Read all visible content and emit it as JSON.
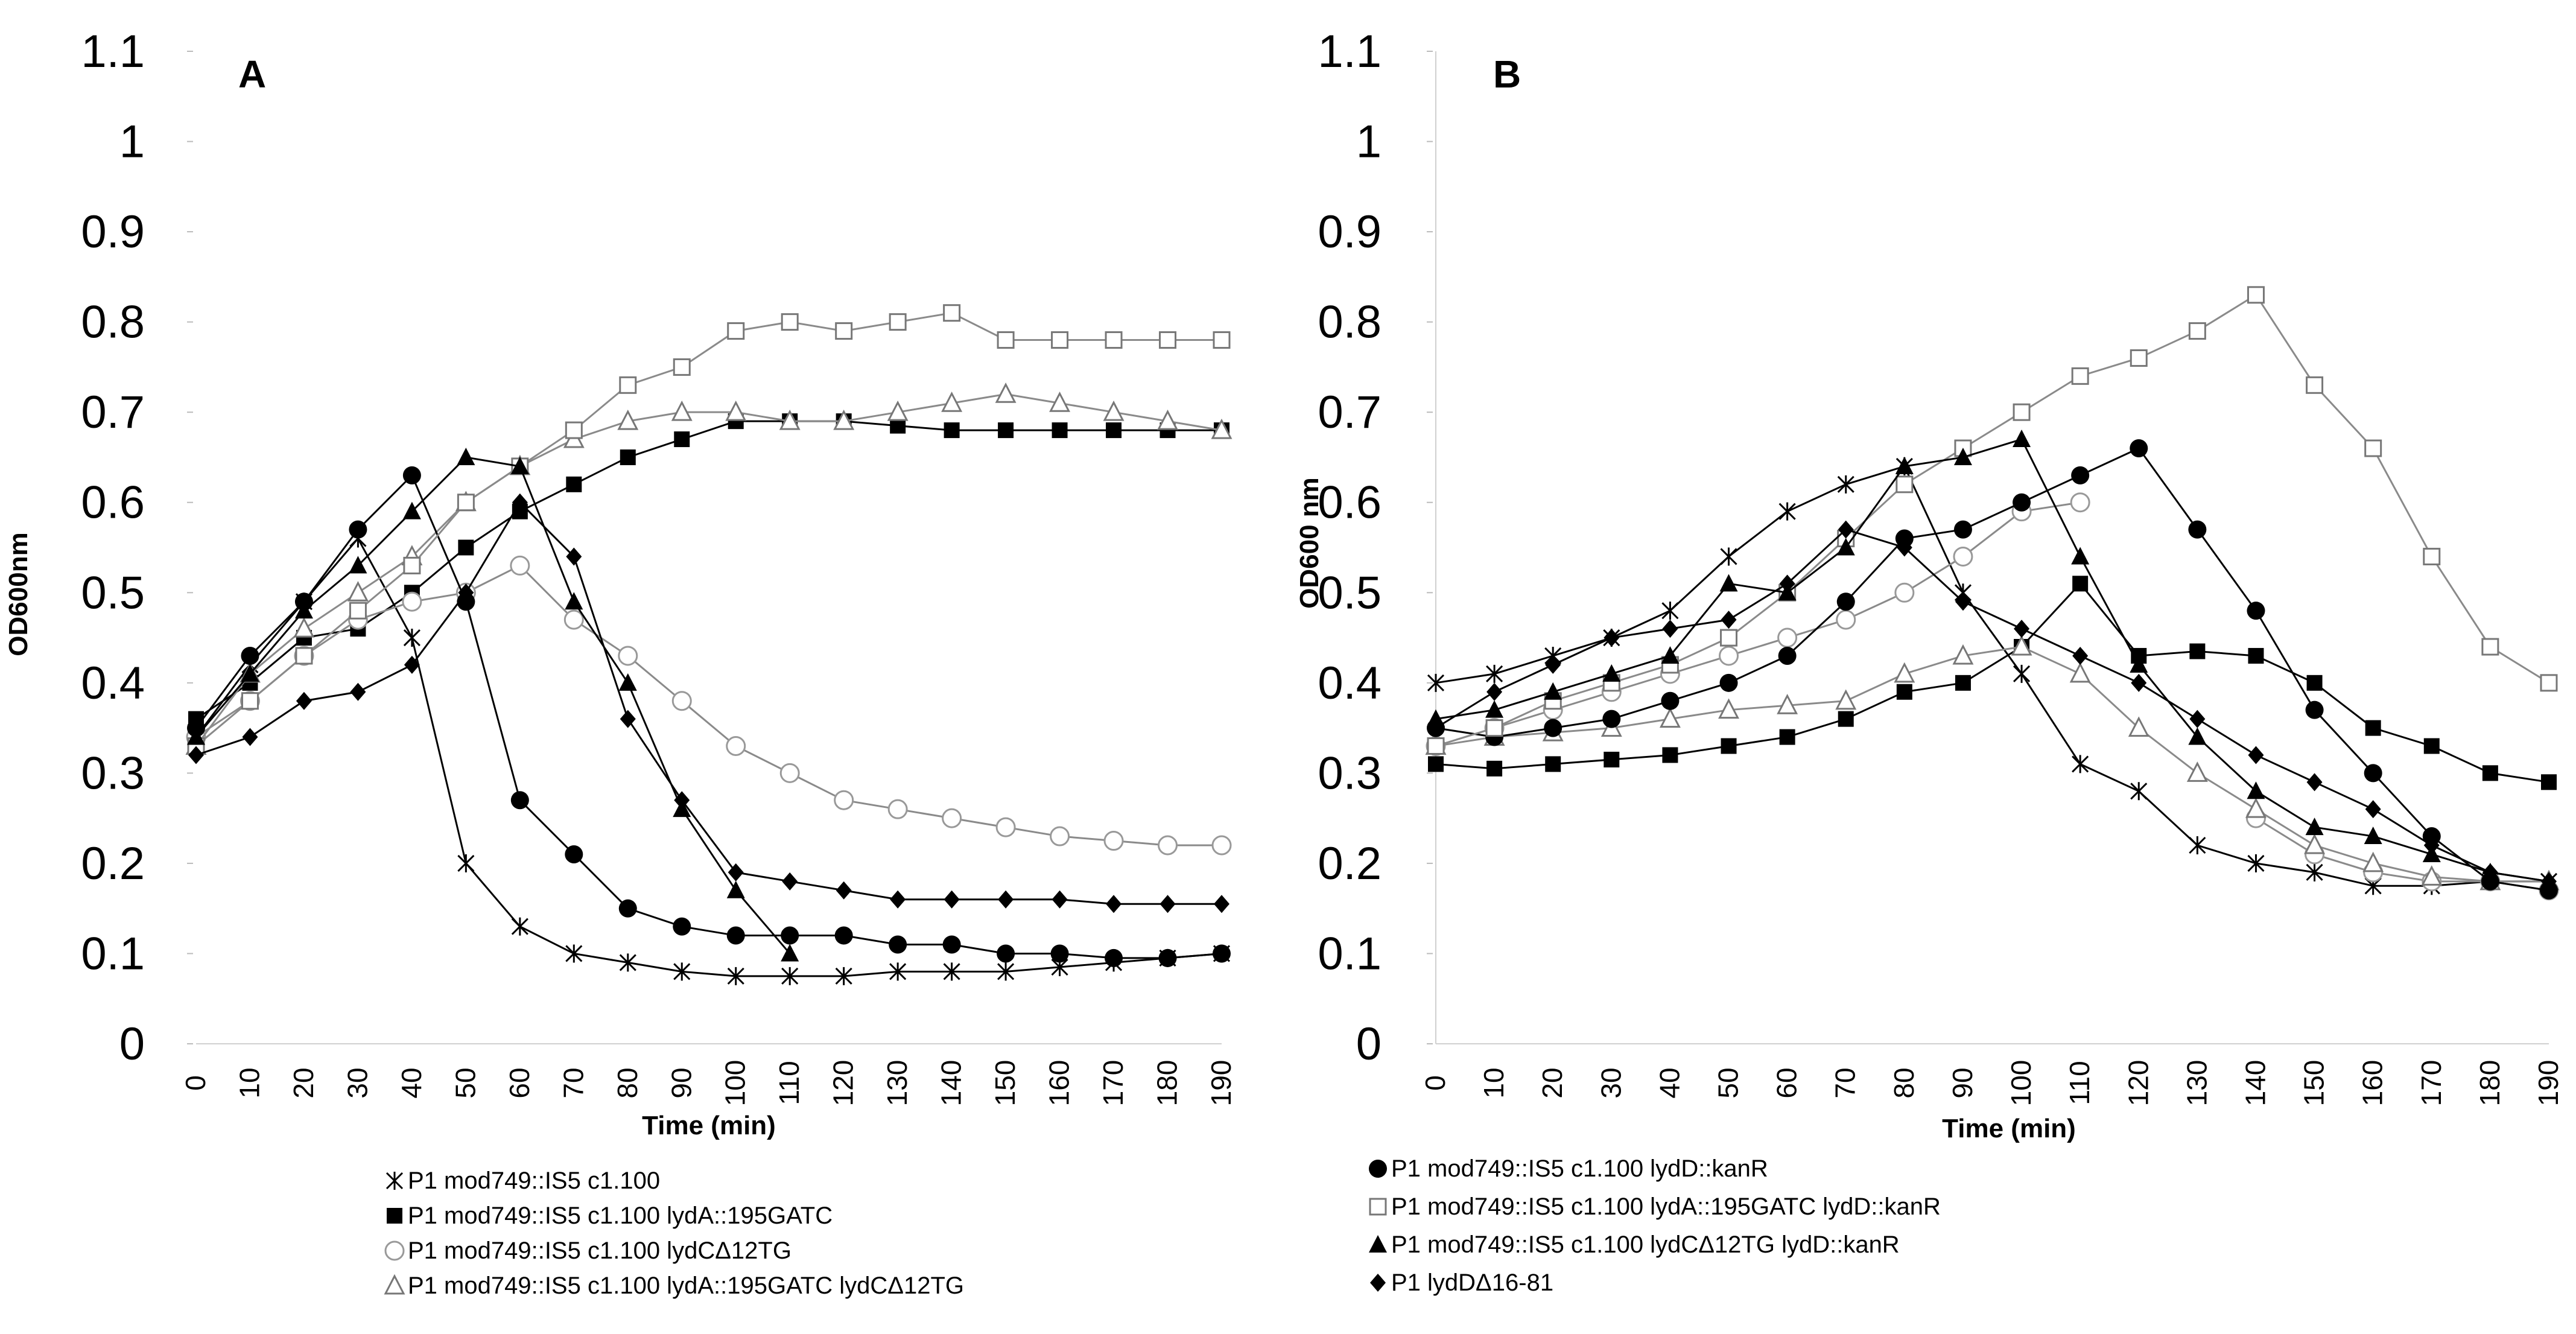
{
  "figure": {
    "panels": [
      "A",
      "B"
    ]
  },
  "chart_data": [
    {
      "panel_label": "A",
      "type": "line",
      "title": "",
      "xlabel": "Time (min)",
      "ylabel": "OD600nm",
      "xlim": [
        0,
        190
      ],
      "ylim": [
        0,
        1.1
      ],
      "yticks": [
        "0",
        "0.1",
        "0.2",
        "0.3",
        "0.4",
        "0.5",
        "0.6",
        "0.7",
        "0.8",
        "0.9",
        "1",
        "1.1"
      ],
      "x": [
        0,
        10,
        20,
        30,
        40,
        50,
        60,
        70,
        80,
        90,
        100,
        110,
        120,
        130,
        140,
        150,
        160,
        170,
        180,
        190
      ],
      "xtick_labels": [
        "0",
        "10",
        "20",
        "30",
        "40",
        "50",
        "60",
        "70",
        "80",
        "90",
        "100",
        "110",
        "120",
        "130",
        "140",
        "150",
        "160",
        "170",
        "180",
        "190"
      ],
      "legend": "bottom",
      "series": [
        {
          "name": "P1 mod749::IS5 c1.100",
          "marker": "star",
          "values": [
            0.34,
            0.42,
            0.49,
            0.56,
            0.45,
            0.2,
            0.13,
            0.1,
            0.09,
            0.08,
            0.075,
            0.075,
            0.075,
            0.08,
            0.08,
            0.08,
            0.085,
            0.09,
            0.095,
            0.1
          ]
        },
        {
          "name": "P1 mod749::IS5 c1.100 lydA::195GATC",
          "marker": "square-filled",
          "values": [
            0.36,
            0.4,
            0.45,
            0.46,
            0.5,
            0.55,
            0.59,
            0.62,
            0.65,
            0.67,
            0.69,
            0.69,
            0.69,
            0.685,
            0.68,
            0.68,
            0.68,
            0.68,
            0.68,
            0.68
          ]
        },
        {
          "name": "P1 mod749::IS5 c1.100 lydCΔ12TG",
          "marker": "circle-open",
          "values": [
            0.34,
            0.38,
            0.43,
            0.47,
            0.49,
            0.5,
            0.53,
            0.47,
            0.43,
            0.38,
            0.33,
            0.3,
            0.27,
            0.26,
            0.25,
            0.24,
            0.23,
            0.225,
            0.22,
            0.22
          ]
        },
        {
          "name": "P1 mod749::IS5 c1.100 lydA::195GATC lydCΔ12TG",
          "marker": "triangle-open",
          "values": [
            0.33,
            0.41,
            0.46,
            0.5,
            0.54,
            0.6,
            0.64,
            0.67,
            0.69,
            0.7,
            0.7,
            0.69,
            0.69,
            0.7,
            0.71,
            0.72,
            0.71,
            0.7,
            0.69,
            0.68
          ]
        },
        {
          "name": "P1 mod749::IS5 c1.100 lydD::kanR",
          "marker": "circle-filled",
          "values": [
            0.35,
            0.43,
            0.49,
            0.57,
            0.63,
            0.49,
            0.27,
            0.21,
            0.15,
            0.13,
            0.12,
            0.12,
            0.12,
            0.11,
            0.11,
            0.1,
            0.1,
            0.095,
            0.095,
            0.1
          ]
        },
        {
          "name": "P1 mod749::IS5 c1.100 lydA::195GATC lydD::kanR",
          "marker": "square-open",
          "values": [
            0.33,
            0.38,
            0.43,
            0.48,
            0.53,
            0.6,
            0.64,
            0.68,
            0.73,
            0.75,
            0.79,
            0.8,
            0.79,
            0.8,
            0.81,
            0.78,
            0.78,
            0.78,
            0.78,
            0.78
          ]
        },
        {
          "name": "P1 mod749::IS5 c1.100 lydCΔ12TG lydD::kanR",
          "marker": "triangle-filled",
          "values": [
            0.34,
            0.41,
            0.48,
            0.53,
            0.59,
            0.65,
            0.64,
            0.49,
            0.4,
            0.26,
            0.17,
            0.1,
            null,
            null,
            null,
            null,
            null,
            null,
            null,
            null
          ]
        },
        {
          "name": "P1 lydDΔ16-81",
          "marker": "diamond-filled",
          "values": [
            0.32,
            0.34,
            0.38,
            0.39,
            0.42,
            0.5,
            0.6,
            0.54,
            0.36,
            0.27,
            0.19,
            0.18,
            0.17,
            0.16,
            0.16,
            0.16,
            0.16,
            0.155,
            0.155,
            0.155
          ]
        }
      ],
      "legend_entries": [
        {
          "name": "P1 mod749::IS5 c1.100",
          "marker": "star"
        },
        {
          "name": "P1 mod749::IS5 c1.100 lydA::195GATC",
          "marker": "square-filled"
        },
        {
          "name": "P1 mod749::IS5 c1.100 lydCΔ12TG",
          "marker": "circle-open"
        },
        {
          "name": "P1 mod749::IS5 c1.100 lydA::195GATC lydCΔ12TG",
          "marker": "triangle-open"
        }
      ]
    },
    {
      "panel_label": "B",
      "type": "line",
      "title": "",
      "xlabel": "Time (min)",
      "ylabel": "OD600 nm",
      "xlim": [
        0,
        190
      ],
      "ylim": [
        0,
        1.1
      ],
      "yticks": [
        "0",
        "0.1",
        "0.2",
        "0.3",
        "0.4",
        "0.5",
        "0.6",
        "0.7",
        "0.8",
        "0.9",
        "1",
        "1.1"
      ],
      "x": [
        0,
        10,
        20,
        30,
        40,
        50,
        60,
        70,
        80,
        90,
        100,
        110,
        120,
        130,
        140,
        150,
        160,
        170,
        180,
        190
      ],
      "xtick_labels": [
        "0",
        "10",
        "20",
        "30",
        "40",
        "50",
        "60",
        "70",
        "80",
        "90",
        "100",
        "110",
        "120",
        "130",
        "140",
        "150",
        "160",
        "170",
        "180",
        "190"
      ],
      "legend": "bottom",
      "series": [
        {
          "name": "P1 mod749::IS5 c1.100",
          "marker": "star",
          "values": [
            0.4,
            0.41,
            0.43,
            0.45,
            0.48,
            0.54,
            0.59,
            0.62,
            0.64,
            0.5,
            0.41,
            0.31,
            0.28,
            0.22,
            0.2,
            0.19,
            0.175,
            0.175,
            0.18,
            0.18
          ]
        },
        {
          "name": "P1 mod749::IS5 c1.100 lydA::195GATC",
          "marker": "square-filled",
          "values": [
            0.31,
            0.305,
            0.31,
            0.315,
            0.32,
            0.33,
            0.34,
            0.36,
            0.39,
            0.4,
            0.44,
            0.51,
            0.43,
            0.435,
            0.43,
            0.4,
            0.35,
            0.33,
            0.3,
            0.29
          ]
        },
        {
          "name": "P1 mod749::IS5 c1.100 lydCΔ12TG",
          "marker": "circle-open",
          "values": [
            0.33,
            0.35,
            0.37,
            0.39,
            0.41,
            0.43,
            0.45,
            0.47,
            0.5,
            0.54,
            0.59,
            0.6,
            null,
            null,
            0.25,
            0.21,
            0.19,
            0.18,
            0.18,
            0.17
          ]
        },
        {
          "name": "P1 mod749::IS5 c1.100 lydA::195GATC lydCΔ12TG",
          "marker": "triangle-open",
          "values": [
            0.33,
            0.34,
            0.345,
            0.35,
            0.36,
            0.37,
            0.375,
            0.38,
            0.41,
            0.43,
            0.44,
            0.41,
            0.35,
            0.3,
            0.26,
            0.22,
            0.2,
            0.185,
            0.18,
            0.18
          ]
        },
        {
          "name": "P1 mod749::IS5 c1.100 lydD::kanR",
          "marker": "circle-filled",
          "values": [
            0.35,
            0.34,
            0.35,
            0.36,
            0.38,
            0.4,
            0.43,
            0.49,
            0.56,
            0.57,
            0.6,
            0.63,
            0.66,
            0.57,
            0.48,
            0.37,
            0.3,
            0.23,
            0.18,
            0.17
          ]
        },
        {
          "name": "P1 mod749::IS5 c1.100 lydA::195GATC lydD::kanR",
          "marker": "square-open",
          "values": [
            0.33,
            0.35,
            0.38,
            0.4,
            0.42,
            0.45,
            0.5,
            0.56,
            0.62,
            0.66,
            0.7,
            0.74,
            0.76,
            0.79,
            0.83,
            0.73,
            0.66,
            0.54,
            0.44,
            0.4
          ]
        },
        {
          "name": "P1 mod749::IS5 c1.100 lydCΔ12TG lydD::kanR",
          "marker": "triangle-filled",
          "values": [
            0.36,
            0.37,
            0.39,
            0.41,
            0.43,
            0.51,
            0.5,
            0.55,
            0.64,
            0.65,
            0.67,
            0.54,
            0.42,
            0.34,
            0.28,
            0.24,
            0.23,
            0.21,
            0.19,
            0.18
          ]
        },
        {
          "name": "P1 lydDΔ16-81",
          "marker": "diamond-filled",
          "values": [
            0.35,
            0.39,
            0.42,
            0.45,
            0.46,
            0.47,
            0.51,
            0.57,
            0.55,
            0.49,
            0.46,
            0.43,
            0.4,
            0.36,
            0.32,
            0.29,
            0.26,
            0.22,
            0.19,
            0.18
          ]
        }
      ],
      "legend_entries": [
        {
          "name": "P1 mod749::IS5 c1.100 lydD::kanR",
          "marker": "circle-filled"
        },
        {
          "name": "P1 mod749::IS5 c1.100 lydA::195GATC lydD::kanR",
          "marker": "square-open"
        },
        {
          "name": "P1 mod749::IS5 c1.100 lydCΔ12TG lydD::kanR",
          "marker": "triangle-filled"
        },
        {
          "name": "P1 lydDΔ16-81",
          "marker": "diamond-filled"
        }
      ]
    }
  ]
}
